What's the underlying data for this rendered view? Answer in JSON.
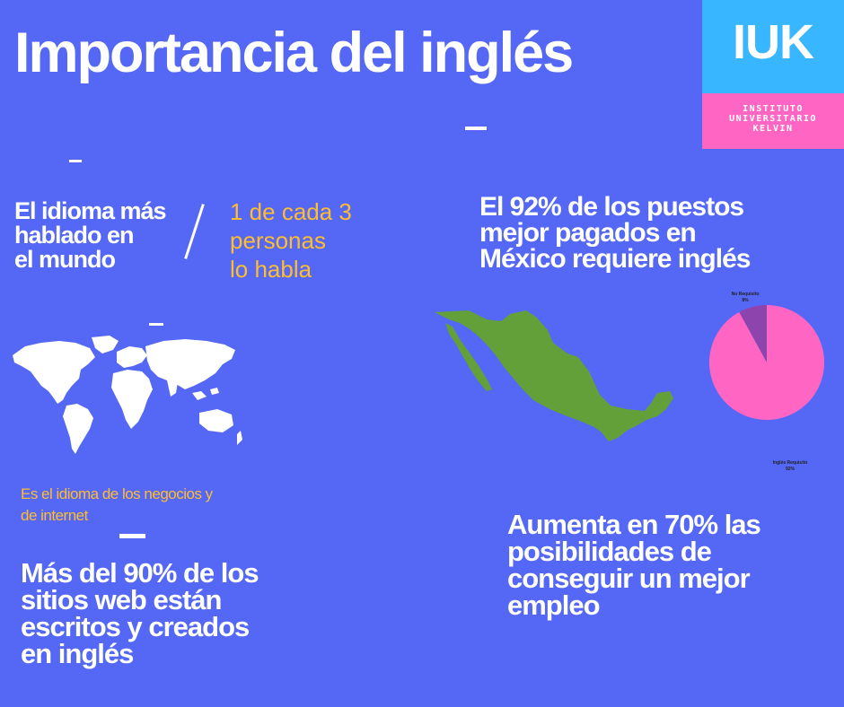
{
  "title": "Importancia del inglés",
  "logo": {
    "abbr": "IUK",
    "line1": "INSTITUTO",
    "line2": "UNIVERSITARIO",
    "line3": "KELVIN",
    "colors": {
      "top": "#38b6ff",
      "bottom": "#ff66c4"
    }
  },
  "section1": {
    "heading_lines": [
      "El idioma más",
      "hablado en",
      "el mundo"
    ],
    "stat_lines": [
      "1 de cada 3",
      "personas",
      "lo habla"
    ]
  },
  "section2": {
    "heading_lines": [
      "El 92% de los puestos",
      "mejor pagados en",
      "México  requiere inglés"
    ]
  },
  "chart_data": {
    "type": "pie",
    "title": "",
    "slices": [
      {
        "label": "No Requisito",
        "value_label": "8%",
        "value": 8,
        "color": "#8e44ad"
      },
      {
        "label": "Inglés Requisito",
        "value_label": "92%",
        "value": 92,
        "color": "#ff66c4"
      }
    ]
  },
  "section3": {
    "caption_lines": [
      "Es el idioma de los negocios y",
      "de internet"
    ],
    "heading_lines": [
      "Más del 90% de los",
      "sitios web están",
      "escritos y creados",
      "en inglés"
    ]
  },
  "section4": {
    "heading_lines": [
      "Aumenta en 70% las",
      "posibilidades de",
      "conseguir un mejor",
      "empleo"
    ]
  },
  "colors": {
    "background": "#5468f5",
    "accent_yellow": "#ffbd2e",
    "map_green": "#63a03a",
    "white": "#ffffff"
  },
  "icons": {
    "world_map": "world-map-icon",
    "mexico_map": "mexico-map-icon"
  }
}
